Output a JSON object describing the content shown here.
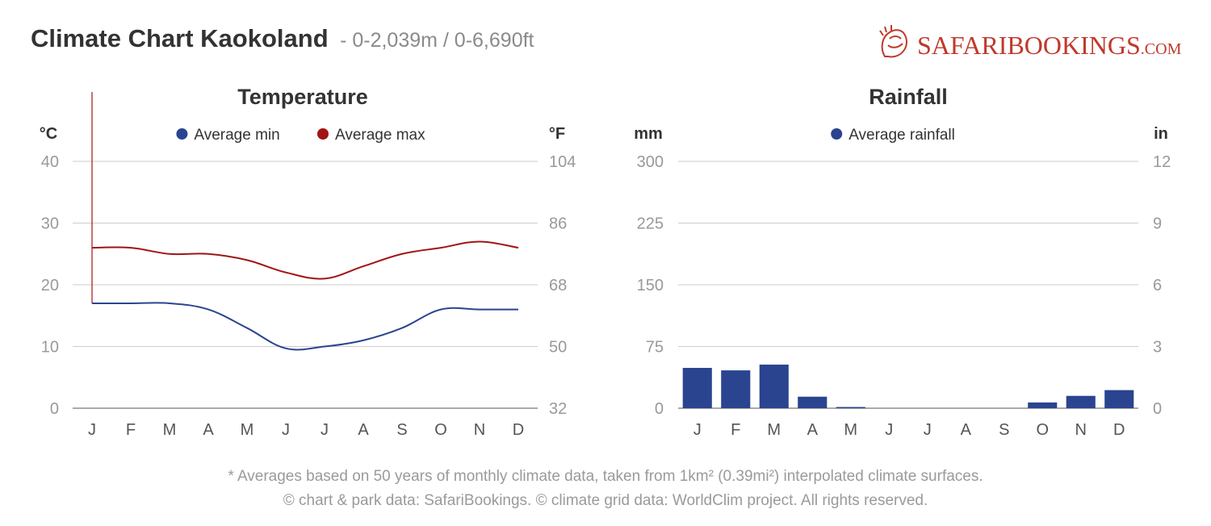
{
  "header": {
    "title": "Climate Chart Kaokoland",
    "subtitle": "- 0-2,039m / 0-6,690ft"
  },
  "logo": {
    "icon": "lion-head-icon",
    "brand_part1": "Safari",
    "brand_part2": "Bookings",
    "brand_suffix": ".com",
    "color": "#c0392b"
  },
  "colors": {
    "min": "#2a4490",
    "max": "#a01414",
    "rain": "#2a4490",
    "grid": "#cccccc",
    "axis_text": "#999999",
    "title_text": "#333333"
  },
  "chart_data": [
    {
      "type": "line",
      "title": "Temperature",
      "left_unit": "°C",
      "right_unit": "°F",
      "categories": [
        "J",
        "F",
        "M",
        "A",
        "M",
        "J",
        "J",
        "A",
        "S",
        "O",
        "N",
        "D"
      ],
      "ylim": [
        0,
        40
      ],
      "y_ticks": [
        0,
        10,
        20,
        30,
        40
      ],
      "y2_ticks": [
        32,
        50,
        68,
        86,
        104
      ],
      "grid": true,
      "legend_position": "top-center",
      "series": [
        {
          "name": "Average min",
          "color": "#2a4490",
          "values": [
            17,
            17,
            17,
            16,
            13,
            9.7,
            10,
            11,
            13,
            16,
            16,
            16
          ]
        },
        {
          "name": "Average max",
          "color": "#a01414",
          "values": [
            26,
            26,
            25,
            25,
            24,
            22,
            21,
            23,
            25,
            26,
            27,
            26
          ]
        }
      ]
    },
    {
      "type": "bar",
      "title": "Rainfall",
      "left_unit": "mm",
      "right_unit": "in",
      "categories": [
        "J",
        "F",
        "M",
        "A",
        "M",
        "J",
        "J",
        "A",
        "S",
        "O",
        "N",
        "D"
      ],
      "ylim": [
        0,
        300
      ],
      "y_ticks": [
        0,
        75,
        150,
        225,
        300
      ],
      "y2_ticks": [
        0,
        3,
        6,
        9,
        12
      ],
      "grid": true,
      "legend_position": "top-center",
      "series": [
        {
          "name": "Average rainfall",
          "color": "#2a4490",
          "values": [
            49,
            46,
            53,
            14,
            1,
            0,
            0,
            0,
            0,
            7,
            15,
            22
          ]
        }
      ]
    }
  ],
  "footer": {
    "line1": "* Averages based on 50 years of monthly climate data, taken from 1km² (0.39mi²) interpolated climate surfaces.",
    "line2": "© chart & park data: SafariBookings. © climate grid data: WorldClim project. All rights reserved."
  }
}
